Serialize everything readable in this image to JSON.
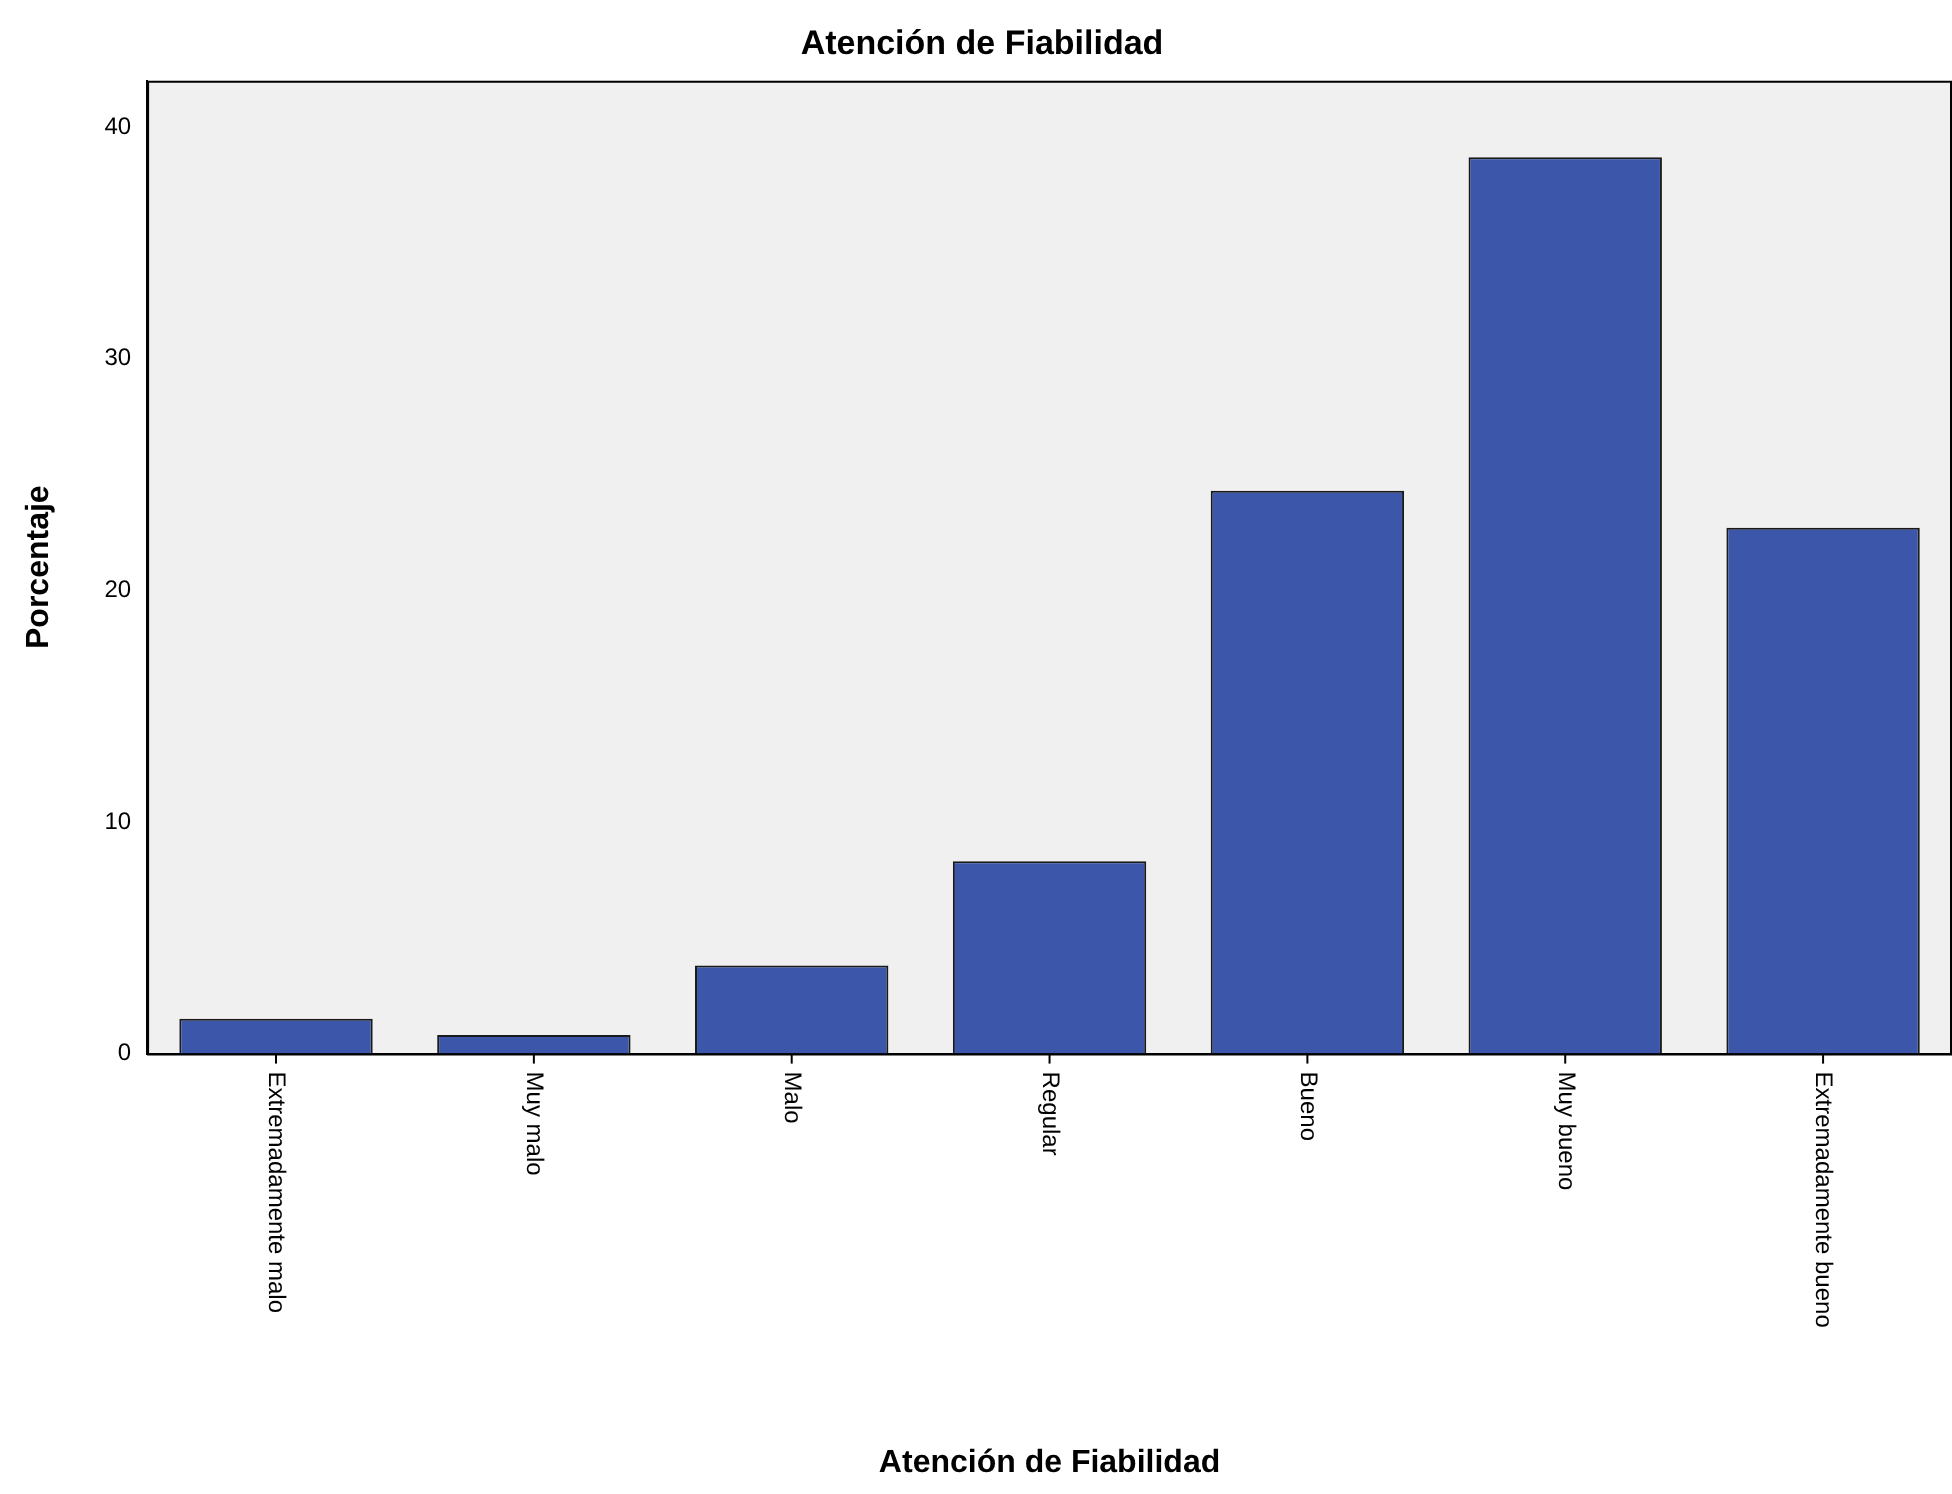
{
  "chart_data": {
    "type": "bar",
    "title": "Atención de Fiabilidad",
    "xlabel": "Atención de Fiabilidad",
    "ylabel": "Porcentaje",
    "categories": [
      "Extremadamente malo",
      "Muy malo",
      "Malo",
      "Regular",
      "Bueno",
      "Muy bueno",
      "Extremadamente bueno"
    ],
    "values": [
      1.5,
      0.8,
      3.8,
      8.3,
      24.3,
      38.7,
      22.7
    ],
    "color": "#3c56a9",
    "ylim": [
      0,
      42
    ],
    "yticks": [
      0,
      10,
      20,
      30,
      40
    ],
    "grid": false,
    "legend": false
  }
}
